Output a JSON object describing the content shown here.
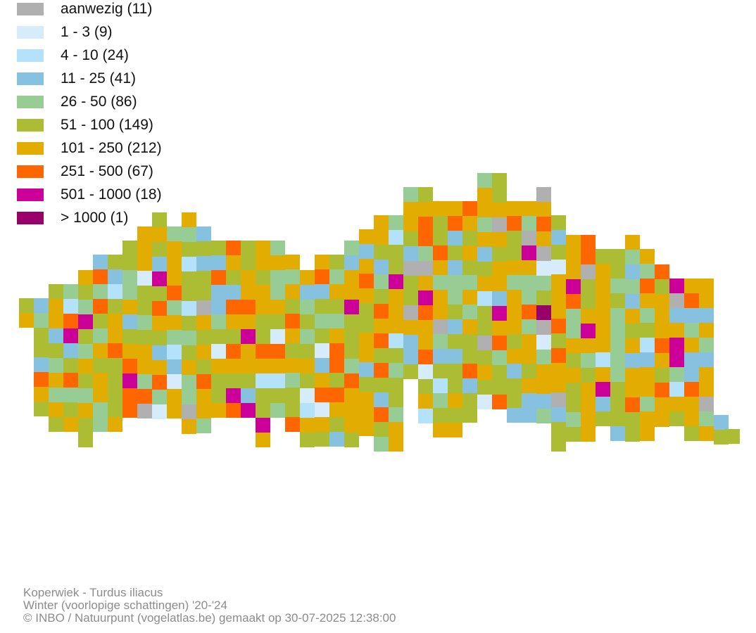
{
  "legend": {
    "items": [
      {
        "label": "aanwezig (11)",
        "color": "#b0b0b0"
      },
      {
        "label": "1 - 3 (9)",
        "color": "#d6ecfa"
      },
      {
        "label": "4 - 10 (24)",
        "color": "#b4e2fb"
      },
      {
        "label": "11 - 25 (41)",
        "color": "#86c1e0"
      },
      {
        "label": "26 - 50 (86)",
        "color": "#97cc95"
      },
      {
        "label": "51 - 100 (149)",
        "color": "#adbd33"
      },
      {
        "label": "101 - 250 (212)",
        "color": "#e2ac00"
      },
      {
        "label": "251 - 500 (67)",
        "color": "#ff6600"
      },
      {
        "label": "501 - 1000 (18)",
        "color": "#cc0099"
      },
      {
        "label": "> 1000 (1)",
        "color": "#99006a"
      }
    ]
  },
  "credits": {
    "line1": "Koperwiek - Turdus iliacus",
    "line2": "Winter (voorlopige schattingen) '20-'24",
    "line3": "© INBO / Natuurpunt (vogelatlas.be) gemaakt op 30-07-2025 12:38:00"
  }
}
